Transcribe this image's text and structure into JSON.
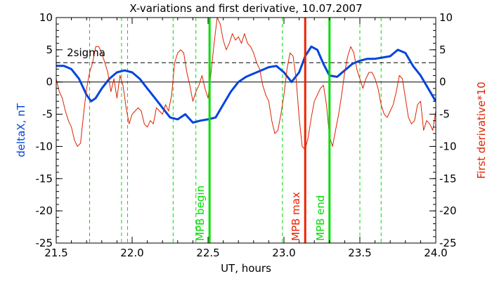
{
  "chart_data": {
    "type": "line",
    "title": "X-variations and first derivative, 10.07.2007",
    "xlabel": "UT, hours",
    "ylabel_left": "deltaX, nT",
    "ylabel_right": "First derivative*10",
    "xlim": [
      21.5,
      24.0
    ],
    "ylim": [
      -25,
      10
    ],
    "grid": false,
    "x_ticks": [
      21.5,
      22.0,
      22.5,
      23.0,
      23.5,
      24.0
    ],
    "x_tick_labels": [
      "21.5",
      "22.0",
      "22.5",
      "23.0",
      "23.5",
      "24.0"
    ],
    "y_ticks": [
      10,
      5,
      0,
      -5,
      -10,
      -15,
      -20,
      -25
    ],
    "y_tick_labels": [
      "10",
      "5",
      "0",
      "-5",
      "-10",
      "-15",
      "-20",
      "-25"
    ],
    "colors": {
      "deltaX": "#0044dd",
      "derivative": "#dd2200",
      "green": "#00dd00",
      "red_line": "#ee2200",
      "axis": "#000000"
    },
    "sigma_level": 3,
    "sigma_label": "2sigma",
    "vertical_dashed": [
      21.72,
      21.93,
      21.97,
      22.27,
      22.42,
      22.99,
      23.5,
      23.64
    ],
    "markers": [
      {
        "x": 22.51,
        "label": "MPB begin",
        "color": "#00dd00"
      },
      {
        "x": 23.14,
        "label": "MPB max",
        "color": "#ee2200"
      },
      {
        "x": 23.3,
        "label": "MPB end",
        "color": "#00dd00"
      }
    ],
    "series": [
      {
        "color": "#0044dd",
        "x": [
          21.5,
          21.55,
          21.6,
          21.65,
          21.7,
          21.73,
          21.76,
          21.8,
          21.85,
          21.9,
          21.95,
          22.0,
          22.05,
          22.1,
          22.15,
          22.2,
          22.25,
          22.3,
          22.35,
          22.4,
          22.45,
          22.5,
          22.55,
          22.6,
          22.65,
          22.7,
          22.75,
          22.8,
          22.85,
          22.9,
          22.95,
          23.0,
          23.05,
          23.1,
          23.14,
          23.18,
          23.22,
          23.26,
          23.3,
          23.35,
          23.4,
          23.45,
          23.5,
          23.55,
          23.6,
          23.65,
          23.7,
          23.75,
          23.8,
          23.85,
          23.9,
          23.95,
          24.0
        ],
        "y": [
          2.5,
          2.5,
          2.0,
          0.5,
          -2.0,
          -3.0,
          -2.5,
          -1.0,
          0.5,
          1.5,
          1.8,
          1.5,
          0.5,
          -1.0,
          -2.5,
          -4.0,
          -5.5,
          -5.8,
          -5.0,
          -6.3,
          -6.0,
          -5.8,
          -5.5,
          -3.5,
          -1.5,
          0.0,
          0.8,
          1.3,
          1.8,
          2.3,
          2.5,
          1.5,
          0.0,
          1.5,
          4.0,
          5.5,
          5.0,
          2.8,
          1.0,
          0.8,
          1.8,
          2.8,
          3.3,
          3.6,
          3.6,
          3.8,
          4.0,
          5.0,
          4.5,
          2.5,
          1.0,
          -1.0,
          -3.0
        ]
      },
      {
        "color": "#dd2200",
        "x": [
          21.5,
          21.52,
          21.54,
          21.56,
          21.58,
          21.6,
          21.62,
          21.64,
          21.66,
          21.68,
          21.7,
          21.72,
          21.74,
          21.76,
          21.78,
          21.8,
          21.82,
          21.84,
          21.86,
          21.88,
          21.9,
          21.92,
          21.94,
          21.96,
          21.98,
          22.0,
          22.02,
          22.04,
          22.06,
          22.08,
          22.1,
          22.12,
          22.14,
          22.16,
          22.18,
          22.2,
          22.22,
          22.24,
          22.26,
          22.28,
          22.3,
          22.32,
          22.34,
          22.36,
          22.38,
          22.4,
          22.42,
          22.44,
          22.46,
          22.48,
          22.5,
          22.52,
          22.54,
          22.56,
          22.58,
          22.6,
          22.62,
          22.64,
          22.66,
          22.68,
          22.7,
          22.72,
          22.74,
          22.76,
          22.78,
          22.8,
          22.82,
          22.84,
          22.86,
          22.88,
          22.9,
          22.92,
          22.94,
          22.96,
          22.98,
          23.0,
          23.02,
          23.04,
          23.06,
          23.08,
          23.1,
          23.12,
          23.14,
          23.16,
          23.18,
          23.2,
          23.22,
          23.24,
          23.26,
          23.28,
          23.3,
          23.32,
          23.34,
          23.36,
          23.38,
          23.4,
          23.42,
          23.44,
          23.46,
          23.48,
          23.5,
          23.52,
          23.54,
          23.56,
          23.58,
          23.6,
          23.62,
          23.64,
          23.66,
          23.68,
          23.7,
          23.72,
          23.74,
          23.76,
          23.78,
          23.8,
          23.82,
          23.84,
          23.86,
          23.88,
          23.9,
          23.92,
          23.94,
          23.96,
          23.98,
          24.0
        ],
        "y": [
          0.5,
          -1.5,
          -2.5,
          -4.5,
          -6.0,
          -7.0,
          -9.0,
          -10.0,
          -9.5,
          -5.0,
          -1.0,
          1.5,
          3.0,
          5.5,
          5.5,
          4.5,
          3.0,
          1.5,
          -1.5,
          0.5,
          -2.5,
          1.0,
          -0.5,
          -4.0,
          -6.5,
          -5.0,
          -4.5,
          -4.0,
          -4.5,
          -6.5,
          -7.0,
          -6.0,
          -6.5,
          -4.0,
          -4.5,
          -5.0,
          -3.5,
          -4.5,
          -2.0,
          3.0,
          4.5,
          5.0,
          4.5,
          1.5,
          -0.5,
          -3.0,
          -1.5,
          -0.5,
          1.0,
          -1.0,
          -2.5,
          1.5,
          6.0,
          10.0,
          9.0,
          6.5,
          5.0,
          6.0,
          7.5,
          6.5,
          7.0,
          6.0,
          7.5,
          6.0,
          5.5,
          4.5,
          3.0,
          2.0,
          -0.5,
          -2.0,
          -3.0,
          -6.0,
          -8.0,
          -7.5,
          -5.0,
          -2.0,
          2.0,
          4.5,
          4.0,
          0.5,
          -5.5,
          -10.0,
          -10.5,
          -8.5,
          -5.5,
          -3.0,
          -2.0,
          -1.0,
          -0.5,
          -3.5,
          -8.5,
          -10.0,
          -7.5,
          -5.0,
          -2.0,
          1.5,
          4.0,
          5.5,
          4.5,
          2.0,
          0.5,
          -1.0,
          0.5,
          1.5,
          1.5,
          0.5,
          -1.0,
          -3.5,
          -5.0,
          -5.5,
          -4.5,
          -3.5,
          -1.5,
          1.0,
          0.5,
          -2.5,
          -5.5,
          -6.5,
          -6.0,
          -3.5,
          -3.0,
          -7.5,
          -6.0,
          -6.5,
          -7.5,
          -4.5
        ]
      }
    ]
  }
}
